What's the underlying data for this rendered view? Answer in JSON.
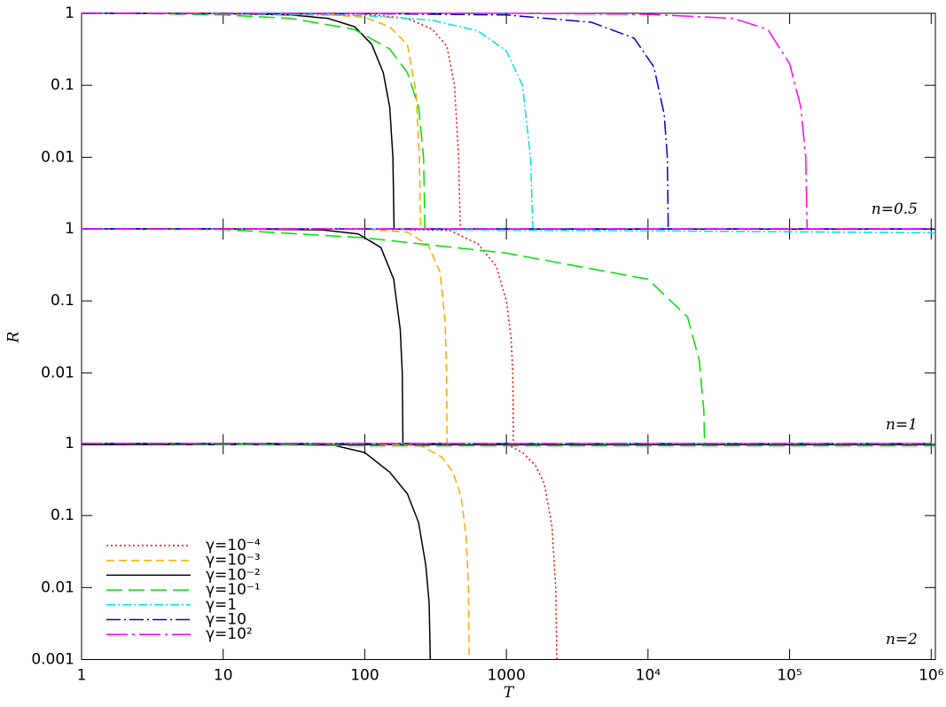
{
  "chart_data": [
    {
      "type": "line",
      "annotation": "n=0.5",
      "log_x": true,
      "log_y": true,
      "xlim": [
        1,
        1070000
      ],
      "ylim": [
        0.001,
        1
      ],
      "yticks": [
        1,
        0.1,
        0.01
      ],
      "series": [
        {
          "color": "#ff0000",
          "dash": "dotted",
          "x": [
            1,
            10,
            100,
            200,
            300,
            380,
            430,
            460,
            473
          ],
          "values": [
            1,
            1,
            0.98,
            0.85,
            0.6,
            0.35,
            0.1,
            0.01,
            0.001
          ]
        },
        {
          "color": "#ffa500",
          "dash": "dashed",
          "x": [
            1,
            10,
            50,
            100,
            150,
            200,
            230,
            243,
            248
          ],
          "values": [
            1,
            1,
            0.97,
            0.88,
            0.65,
            0.37,
            0.08,
            0.01,
            0.001
          ]
        },
        {
          "color": "#000000",
          "dash": "solid",
          "x": [
            1,
            10,
            30,
            55,
            85,
            112,
            135,
            150,
            158,
            161
          ],
          "values": [
            1,
            0.99,
            0.95,
            0.85,
            0.65,
            0.37,
            0.15,
            0.05,
            0.01,
            0.001
          ]
        },
        {
          "color": "#00dd00",
          "dash": "longdash",
          "x": [
            1,
            3,
            10,
            30,
            84,
            150,
            200,
            240,
            260,
            266
          ],
          "values": [
            1,
            0.99,
            0.95,
            0.85,
            0.6,
            0.32,
            0.15,
            0.05,
            0.01,
            0.001
          ]
        },
        {
          "color": "#00e0e0",
          "dash": "dashdot",
          "x": [
            1,
            10,
            100,
            300,
            630,
            1000,
            1300,
            1480,
            1540
          ],
          "values": [
            1,
            0.99,
            0.93,
            0.8,
            0.57,
            0.3,
            0.1,
            0.01,
            0.001
          ]
        },
        {
          "color": "#0000cc",
          "dash": "longdashdot",
          "x": [
            1,
            100,
            1000,
            4000,
            8000,
            11000,
            13000,
            13700,
            13900
          ],
          "values": [
            1,
            0.99,
            0.95,
            0.75,
            0.45,
            0.18,
            0.04,
            0.01,
            0.001
          ]
        },
        {
          "color": "#ff00ff",
          "dash": "longdashdot2",
          "x": [
            1,
            1000,
            10000,
            40000,
            70000,
            100000,
            120000,
            130000,
            133000
          ],
          "values": [
            1,
            1,
            0.97,
            0.85,
            0.6,
            0.2,
            0.05,
            0.01,
            0.001
          ]
        }
      ]
    },
    {
      "type": "line",
      "annotation": "n=1",
      "ylabel": "R",
      "log_x": true,
      "log_y": true,
      "xlim": [
        1,
        1070000
      ],
      "ylim": [
        0.001,
        1
      ],
      "yticks": [
        1,
        0.1,
        0.01
      ],
      "series": [
        {
          "color": "#ff0000",
          "dash": "dotted",
          "x": [
            1,
            100,
            400,
            630,
            850,
            1000,
            1080,
            1110,
            1122
          ],
          "values": [
            1,
            1,
            0.95,
            0.62,
            0.3,
            0.1,
            0.03,
            0.01,
            0.001
          ]
        },
        {
          "color": "#ffa500",
          "dash": "dashed",
          "x": [
            1,
            20,
            100,
            200,
            280,
            340,
            370,
            378,
            381
          ],
          "values": [
            1,
            1,
            0.99,
            0.9,
            0.6,
            0.25,
            0.05,
            0.01,
            0.001
          ]
        },
        {
          "color": "#000000",
          "dash": "solid",
          "x": [
            1,
            10,
            50,
            90,
            130,
            160,
            178,
            184,
            186
          ],
          "values": [
            1,
            1,
            0.97,
            0.85,
            0.55,
            0.2,
            0.04,
            0.01,
            0.001
          ]
        },
        {
          "color": "#00dd00",
          "dash": "longdash",
          "x": [
            1,
            10,
            100,
            1000,
            10000,
            19000,
            23000,
            24800,
            25100
          ],
          "values": [
            1,
            0.98,
            0.75,
            0.46,
            0.2,
            0.06,
            0.015,
            0.003,
            0.001
          ]
        },
        {
          "color": "#00e0e0",
          "dash": "dashdot",
          "x": [
            1,
            100,
            10000,
            1070000
          ],
          "values": [
            1,
            0.99,
            0.94,
            0.88
          ]
        },
        {
          "color": "#0000cc",
          "dash": "longdashdot",
          "x": [
            1,
            1070000
          ],
          "values": [
            1,
            1
          ]
        },
        {
          "color": "#ff00ff",
          "dash": "longdashdot2",
          "x": [
            1,
            1070000
          ],
          "values": [
            1,
            1
          ]
        }
      ]
    },
    {
      "type": "line",
      "annotation": "n=2",
      "xlabel": "T",
      "log_x": true,
      "log_y": true,
      "xlim": [
        1,
        1070000
      ],
      "ylim": [
        0.001,
        1
      ],
      "yticks": [
        1,
        0.1,
        0.01,
        0.001
      ],
      "xticks": [
        1,
        10,
        100,
        1000,
        {
          "value": 10000,
          "label": "10⁴"
        },
        {
          "value": 100000,
          "label": "10⁵"
        },
        {
          "value": 1000000,
          "label": "10⁶"
        }
      ],
      "legend": "lower left",
      "series": [
        {
          "name": "γ=10⁻⁴",
          "color": "#ff0000",
          "dash": "dotted",
          "x": [
            1,
            500,
            1000,
            1300,
            1600,
            1850,
            2100,
            2230,
            2270
          ],
          "values": [
            1,
            1,
            0.98,
            0.75,
            0.5,
            0.28,
            0.07,
            0.01,
            0.001
          ]
        },
        {
          "name": "γ=10⁻³",
          "color": "#ffa500",
          "dash": "dashed",
          "x": [
            1,
            100,
            250,
            350,
            420,
            480,
            520,
            540,
            546
          ],
          "values": [
            1,
            1,
            0.93,
            0.65,
            0.4,
            0.18,
            0.05,
            0.01,
            0.001
          ]
        },
        {
          "name": "γ=10⁻²",
          "color": "#000000",
          "dash": "solid",
          "x": [
            1,
            10,
            60,
            100,
            150,
            200,
            240,
            270,
            285,
            290
          ],
          "values": [
            1,
            1,
            0.95,
            0.75,
            0.4,
            0.2,
            0.08,
            0.02,
            0.006,
            0.001
          ]
        },
        {
          "name": "γ=10⁻¹",
          "color": "#00dd00",
          "dash": "longdash",
          "x": [
            1,
            10,
            100,
            1070000
          ],
          "values": [
            1,
            0.97,
            0.93,
            0.93
          ]
        },
        {
          "name": "γ=1",
          "color": "#00e0e0",
          "dash": "dashdot",
          "x": [
            1,
            1070000
          ],
          "values": [
            1,
            1
          ]
        },
        {
          "name": "γ=10",
          "color": "#0000cc",
          "dash": "longdashdot",
          "x": [
            1,
            1070000
          ],
          "values": [
            1,
            1
          ]
        },
        {
          "name": "γ=10²",
          "color": "#ff00ff",
          "dash": "longdashdot2",
          "x": [
            1,
            1070000
          ],
          "values": [
            1,
            1
          ]
        }
      ]
    }
  ]
}
